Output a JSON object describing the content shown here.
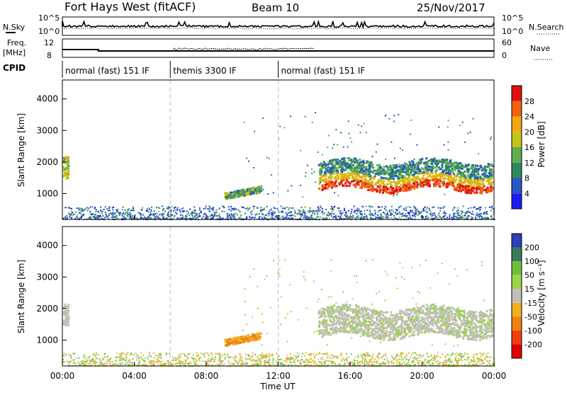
{
  "header": {
    "station": "Fort Hays West (fitACF)",
    "beam": "Beam 10",
    "date": "25/Nov/2017"
  },
  "strip": {
    "left_nsky_label": "N.Sky",
    "left_freq_label_1": "Freq.",
    "left_freq_label_2": "[MHz]",
    "left_cpid_label": "CPID",
    "right_nsearch_label": "N.Search",
    "right_nave_label": "Nave",
    "noise_ticks_left": [
      "10^5",
      "10^0"
    ],
    "noise_ticks_right": [
      "10^5",
      "10^0"
    ],
    "freq_ticks_left": [
      "12",
      "8"
    ],
    "nave_ticks_right": [
      "60",
      "0"
    ],
    "cpid_segments": [
      {
        "label": "normal (fast) 151 IF",
        "start_hour": 0,
        "end_hour": 6
      },
      {
        "label": "themis 3300 IF",
        "start_hour": 6,
        "end_hour": 12
      },
      {
        "label": "normal (fast) 151 IF",
        "start_hour": 12,
        "end_hour": 24
      }
    ]
  },
  "chart_data": [
    {
      "type": "heatmap",
      "panel": "power",
      "ylabel": "Slant Range [km]",
      "xlabel": "",
      "x_ticks": [
        "00:00",
        "04:00",
        "08:00",
        "12:00",
        "16:00",
        "20:00",
        "00:00"
      ],
      "x_range_hours": [
        0,
        24
      ],
      "y_ticks": [
        1000,
        2000,
        3000,
        4000
      ],
      "y_range_km": [
        180,
        4600
      ],
      "colorbar_label": "Power [dB]",
      "colorbar_ticks": [
        4,
        8,
        12,
        16,
        20,
        24,
        28
      ],
      "colorbar_colors": [
        "#1c1cf2",
        "#2a55c8",
        "#2f8a5b",
        "#5fae4f",
        "#c4c41a",
        "#f2a90c",
        "#f06212",
        "#e01010"
      ],
      "features": [
        {
          "name": "near-range clutter",
          "hours": [
            0,
            24
          ],
          "range_km": [
            200,
            600
          ]
        },
        {
          "name": "midday echo",
          "hours": [
            9,
            11
          ],
          "range_km": [
            900,
            1300
          ]
        },
        {
          "name": "evening band",
          "hours": [
            14.2,
            24
          ],
          "range_km": [
            1000,
            2200
          ]
        }
      ]
    },
    {
      "type": "heatmap",
      "panel": "velocity",
      "ylabel": "Slant Range [km]",
      "xlabel": "Time UT",
      "x_ticks": [
        "00:00",
        "04:00",
        "08:00",
        "12:00",
        "16:00",
        "20:00",
        "00:00"
      ],
      "x_range_hours": [
        0,
        24
      ],
      "y_ticks": [
        1000,
        2000,
        3000,
        4000
      ],
      "y_range_km": [
        180,
        4600
      ],
      "colorbar_label": "Velocity [m s⁻¹]",
      "colorbar_ticks": [
        200,
        100,
        50,
        15,
        -15,
        -50,
        -100,
        -200
      ],
      "colorbar_colors": [
        "#2a3fb8",
        "#3a7a5a",
        "#6fbf3a",
        "#9ad44a",
        "#c0c0b8",
        "#f0b020",
        "#f08010",
        "#f04010",
        "#e00000"
      ],
      "features": [
        {
          "name": "near-range clutter",
          "hours": [
            0,
            24
          ],
          "range_km": [
            200,
            600
          ]
        },
        {
          "name": "midday echo",
          "hours": [
            9,
            11
          ],
          "range_km": [
            900,
            1300
          ]
        },
        {
          "name": "evening band",
          "hours": [
            14.2,
            24
          ],
          "range_km": [
            1000,
            2200
          ]
        }
      ]
    }
  ]
}
